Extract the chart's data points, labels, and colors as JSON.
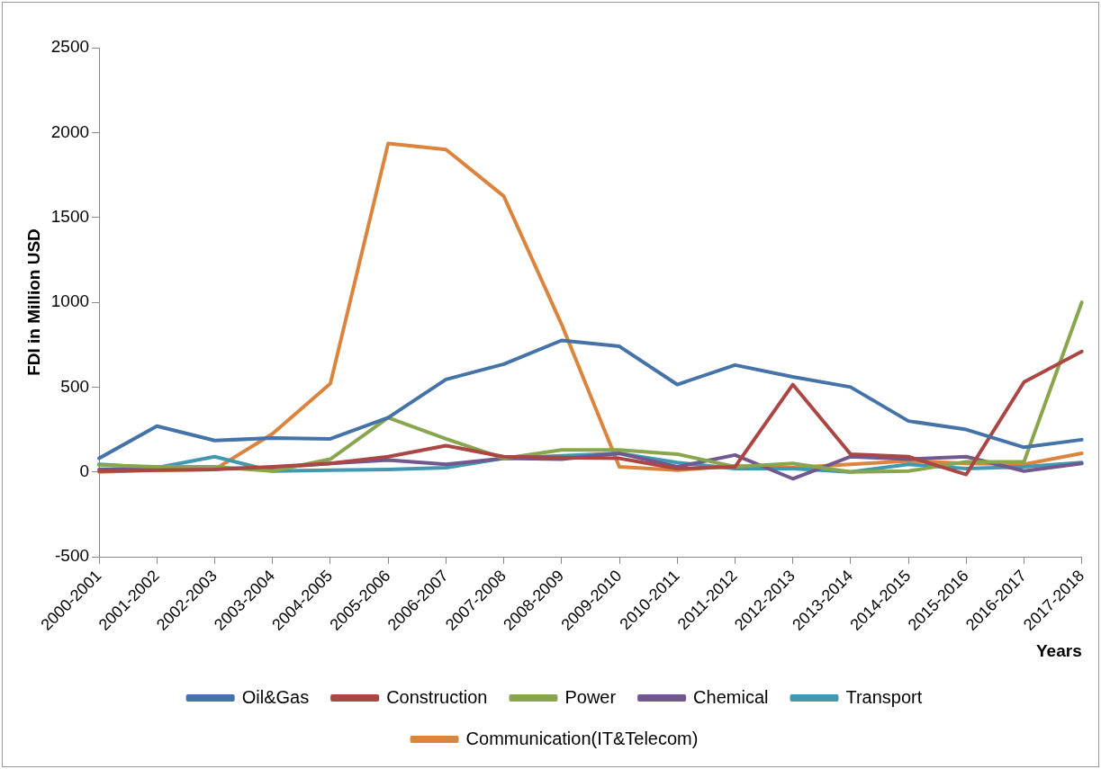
{
  "chart_data": {
    "type": "line",
    "xlabel": "Years",
    "ylabel": "FDI in Million USD",
    "categories": [
      "2000-2001",
      "2001-2002",
      "2002-2003",
      "2003-2004",
      "2004-2005",
      "2005-2006",
      "2006-2007",
      "2007-2008",
      "2008-2009",
      "2009-2010",
      "2010-2011",
      "2011-2012",
      "2012-2013",
      "2013-2014",
      "2014-2015",
      "2015-2016",
      "2016-2017",
      "2017-2018"
    ],
    "series": [
      {
        "name": "Oil&Gas",
        "color": "#4572a7",
        "values": [
          80,
          270,
          185,
          200,
          195,
          320,
          545,
          635,
          775,
          740,
          515,
          630,
          560,
          500,
          300,
          250,
          145,
          190
        ]
      },
      {
        "name": "Construction",
        "color": "#aa4643",
        "values": [
          5,
          10,
          15,
          30,
          50,
          90,
          155,
          90,
          85,
          80,
          20,
          30,
          515,
          105,
          90,
          -15,
          530,
          710
        ]
      },
      {
        "name": "Power",
        "color": "#89a54e",
        "values": [
          40,
          30,
          30,
          5,
          75,
          320,
          195,
          80,
          130,
          130,
          105,
          30,
          50,
          0,
          5,
          60,
          60,
          1000
        ]
      },
      {
        "name": "Chemical",
        "color": "#71588f",
        "values": [
          15,
          15,
          20,
          25,
          50,
          70,
          45,
          80,
          75,
          110,
          30,
          100,
          -40,
          90,
          75,
          90,
          5,
          50
        ]
      },
      {
        "name": "Transport",
        "color": "#4198af",
        "values": [
          45,
          25,
          90,
          5,
          10,
          15,
          25,
          80,
          95,
          110,
          55,
          20,
          20,
          0,
          45,
          20,
          30,
          55
        ]
      },
      {
        "name": "Communication(IT&Telecom)",
        "color": "#db843d",
        "values": [
          0,
          10,
          15,
          225,
          520,
          1935,
          1900,
          1625,
          870,
          30,
          10,
          35,
          25,
          45,
          65,
          50,
          45,
          110
        ]
      }
    ],
    "ylim": [
      -500,
      2500
    ],
    "yticks": [
      -500,
      0,
      500,
      1000,
      1500,
      2000,
      2500
    ],
    "grid": false,
    "legend": "bottom",
    "marker": "none",
    "line_style": "solid"
  }
}
